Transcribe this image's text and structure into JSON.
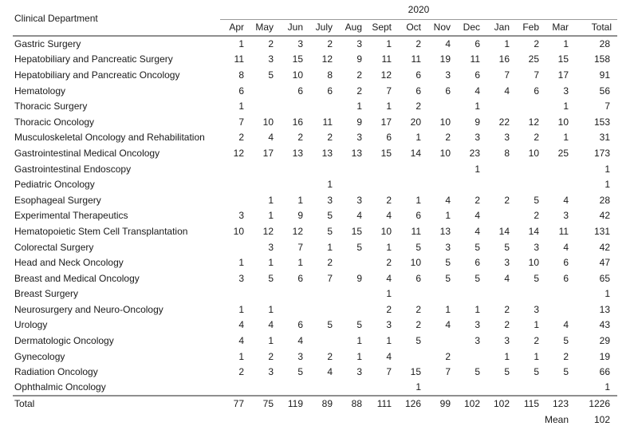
{
  "chart_data": {
    "type": "table",
    "corner_label": "Clinical Department",
    "year_label": "2020",
    "columns": [
      "Apr",
      "May",
      "Jun",
      "July",
      "Aug",
      "Sept",
      "Oct",
      "Nov",
      "Dec",
      "Jan",
      "Feb",
      "Mar"
    ],
    "total_header": "Total",
    "rows": [
      {
        "department": "Gastric Surgery",
        "monthly": [
          1,
          2,
          3,
          2,
          3,
          1,
          2,
          4,
          6,
          1,
          2,
          1
        ],
        "total": 28
      },
      {
        "department": "Hepatobiliary and Pancreatic Surgery",
        "monthly": [
          11,
          3,
          15,
          12,
          9,
          11,
          11,
          19,
          11,
          16,
          25,
          15
        ],
        "total": 158
      },
      {
        "department": "Hepatobiliary and Pancreatic Oncology",
        "monthly": [
          8,
          5,
          10,
          8,
          2,
          12,
          6,
          3,
          6,
          7,
          7,
          17
        ],
        "total": 91
      },
      {
        "department": "Hematology",
        "monthly": [
          6,
          null,
          6,
          6,
          2,
          7,
          6,
          6,
          4,
          4,
          6,
          3
        ],
        "total": 56
      },
      {
        "department": "Thoracic Surgery",
        "monthly": [
          1,
          null,
          null,
          null,
          1,
          1,
          2,
          null,
          1,
          null,
          null,
          1
        ],
        "total": 7
      },
      {
        "department": "Thoracic Oncology",
        "monthly": [
          7,
          10,
          16,
          11,
          9,
          17,
          20,
          10,
          9,
          22,
          12,
          10
        ],
        "total": 153
      },
      {
        "department": "Musculoskeletal Oncology and Rehabilitation",
        "monthly": [
          2,
          4,
          2,
          2,
          3,
          6,
          1,
          2,
          3,
          3,
          2,
          1
        ],
        "total": 31
      },
      {
        "department": "Gastrointestinal Medical Oncology",
        "monthly": [
          12,
          17,
          13,
          13,
          13,
          15,
          14,
          10,
          23,
          8,
          10,
          25
        ],
        "total": 173
      },
      {
        "department": "Gastrointestinal Endoscopy",
        "monthly": [
          null,
          null,
          null,
          null,
          null,
          null,
          null,
          null,
          1,
          null,
          null,
          null
        ],
        "total": 1
      },
      {
        "department": "Pediatric Oncology",
        "monthly": [
          null,
          null,
          null,
          1,
          null,
          null,
          null,
          null,
          null,
          null,
          null,
          null
        ],
        "total": 1
      },
      {
        "department": "Esophageal Surgery",
        "monthly": [
          null,
          1,
          1,
          3,
          3,
          2,
          1,
          4,
          2,
          2,
          5,
          4
        ],
        "total": 28
      },
      {
        "department": "Experimental Therapeutics",
        "monthly": [
          3,
          1,
          9,
          5,
          4,
          4,
          6,
          1,
          4,
          null,
          2,
          3
        ],
        "total": 42
      },
      {
        "department": "Hematopoietic Stem Cell Transplantation",
        "monthly": [
          10,
          12,
          12,
          5,
          15,
          10,
          11,
          13,
          4,
          14,
          14,
          11
        ],
        "total": 131
      },
      {
        "department": "Colorectal Surgery",
        "monthly": [
          null,
          3,
          7,
          1,
          5,
          1,
          5,
          3,
          5,
          5,
          3,
          4
        ],
        "total": 42
      },
      {
        "department": "Head and Neck Oncology",
        "monthly": [
          1,
          1,
          1,
          2,
          null,
          2,
          10,
          5,
          6,
          3,
          10,
          6
        ],
        "total": 47
      },
      {
        "department": "Breast and Medical Oncology",
        "monthly": [
          3,
          5,
          6,
          7,
          9,
          4,
          6,
          5,
          5,
          4,
          5,
          6
        ],
        "total": 65
      },
      {
        "department": "Breast Surgery",
        "monthly": [
          null,
          null,
          null,
          null,
          null,
          1,
          null,
          null,
          null,
          null,
          null,
          null
        ],
        "total": 1
      },
      {
        "department": "Neurosurgery and Neuro-Oncology",
        "monthly": [
          1,
          1,
          null,
          null,
          null,
          2,
          2,
          1,
          1,
          2,
          3,
          null
        ],
        "total": 13
      },
      {
        "department": "Urology",
        "monthly": [
          4,
          4,
          6,
          5,
          5,
          3,
          2,
          4,
          3,
          2,
          1,
          4
        ],
        "total": 43
      },
      {
        "department": "Dermatologic Oncology",
        "monthly": [
          4,
          1,
          4,
          null,
          1,
          1,
          5,
          null,
          3,
          3,
          2,
          5
        ],
        "total": 29
      },
      {
        "department": "Gynecology",
        "monthly": [
          1,
          2,
          3,
          2,
          1,
          4,
          null,
          2,
          null,
          1,
          1,
          2
        ],
        "total": 19
      },
      {
        "department": "Radiation Oncology",
        "monthly": [
          2,
          3,
          5,
          4,
          3,
          7,
          15,
          7,
          5,
          5,
          5,
          5
        ],
        "total": 66
      },
      {
        "department": "Ophthalmic Oncology",
        "monthly": [
          null,
          null,
          null,
          null,
          null,
          null,
          1,
          null,
          null,
          null,
          null,
          null
        ],
        "total": 1
      }
    ],
    "totals_row": {
      "label": "Total",
      "monthly": [
        77,
        75,
        119,
        89,
        88,
        111,
        126,
        99,
        102,
        102,
        115,
        123
      ],
      "total": 1226
    },
    "mean_row": {
      "label": "Mean",
      "value": 102
    }
  },
  "colors": {
    "text": "#1a1a1a",
    "rule_thick": "#8f8f8f",
    "rule_thin": "#9a9a9a",
    "background": "#ffffff"
  }
}
